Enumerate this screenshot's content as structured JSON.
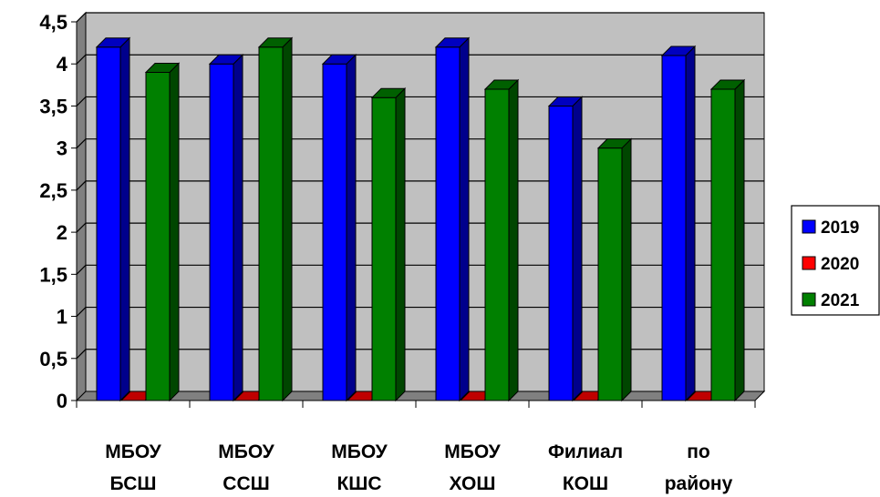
{
  "chart_data": {
    "type": "bar",
    "style": "3d-clustered-column",
    "categories": [
      [
        "МБОУ",
        "БСШ"
      ],
      [
        "МБОУ",
        "ССШ"
      ],
      [
        "МБОУ",
        "КШС"
      ],
      [
        "МБОУ",
        "ХОШ"
      ],
      [
        "Филиал",
        "КОШ"
      ],
      [
        "по",
        "району"
      ]
    ],
    "series": [
      {
        "name": "2019",
        "color": "#0000ff",
        "values": [
          4.2,
          4.0,
          4.0,
          4.2,
          3.5,
          4.1
        ]
      },
      {
        "name": "2020",
        "color": "#ff0000",
        "values": [
          0,
          0,
          0,
          0,
          0,
          0
        ]
      },
      {
        "name": "2021",
        "color": "#008000",
        "values": [
          3.9,
          4.2,
          3.6,
          3.7,
          3.0,
          3.7
        ]
      }
    ],
    "yticks": [
      "0",
      "0,5",
      "1",
      "1,5",
      "2",
      "2,5",
      "3",
      "3,5",
      "4",
      "4,5"
    ],
    "ylim": [
      0,
      4.5
    ],
    "grid": true,
    "legend_position": "right",
    "plot_background": "#c0c0c0"
  }
}
